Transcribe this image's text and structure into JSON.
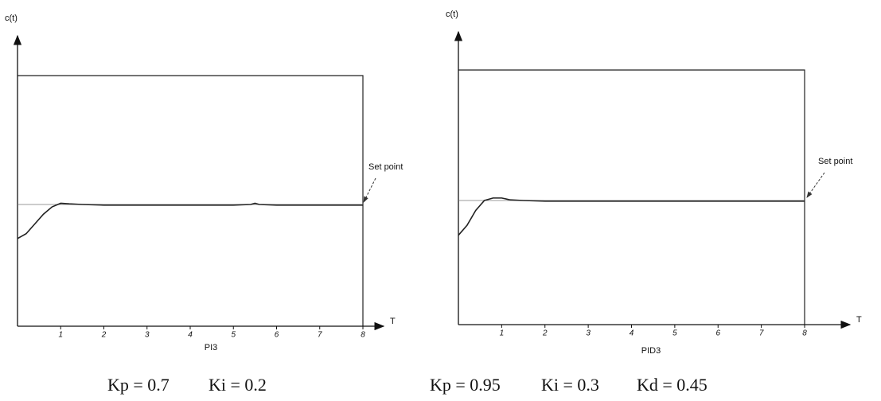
{
  "chart_data": [
    {
      "type": "line",
      "y_label": "c(t)",
      "x_label": "T",
      "caption": "PI3",
      "params": [
        "Kp = 0.7",
        "Ki  = 0.2"
      ],
      "setpoint": {
        "label": "Set point",
        "value": 1
      },
      "color": "#222",
      "x": [
        0,
        0.2,
        0.4,
        0.6,
        0.8,
        1.0,
        1.2,
        1.5,
        2,
        3,
        4,
        5,
        5.4,
        5.5,
        5.6,
        6,
        7,
        8
      ],
      "values": [
        0.72,
        0.76,
        0.84,
        0.92,
        0.98,
        1.01,
        1.005,
        1.0,
        0.995,
        0.995,
        0.995,
        0.995,
        1.0,
        1.01,
        1.0,
        0.995,
        0.995,
        0.995
      ],
      "xlim": [
        0,
        8
      ],
      "xticks": [
        1,
        2,
        3,
        4,
        5,
        6,
        7,
        8
      ],
      "ylim": [
        0,
        2
      ]
    },
    {
      "type": "line",
      "y_label": "c(t)",
      "x_label": "T",
      "caption": "PID3",
      "params": [
        "Kp = 0.95",
        "Ki  = 0.3",
        "Kd = 0.45"
      ],
      "setpoint": {
        "label": "Set point",
        "value": 1
      },
      "color": "#222",
      "x": [
        0,
        0.2,
        0.4,
        0.6,
        0.8,
        1.0,
        1.2,
        1.5,
        2,
        3,
        4,
        5,
        6,
        7,
        8
      ],
      "values": [
        0.72,
        0.8,
        0.92,
        1.0,
        1.02,
        1.02,
        1.005,
        1.0,
        0.995,
        0.995,
        0.995,
        0.995,
        0.995,
        0.995,
        0.995
      ],
      "xlim": [
        0,
        8
      ],
      "xticks": [
        1,
        2,
        3,
        4,
        5,
        6,
        7,
        8
      ],
      "ylim": [
        0,
        2
      ]
    }
  ]
}
